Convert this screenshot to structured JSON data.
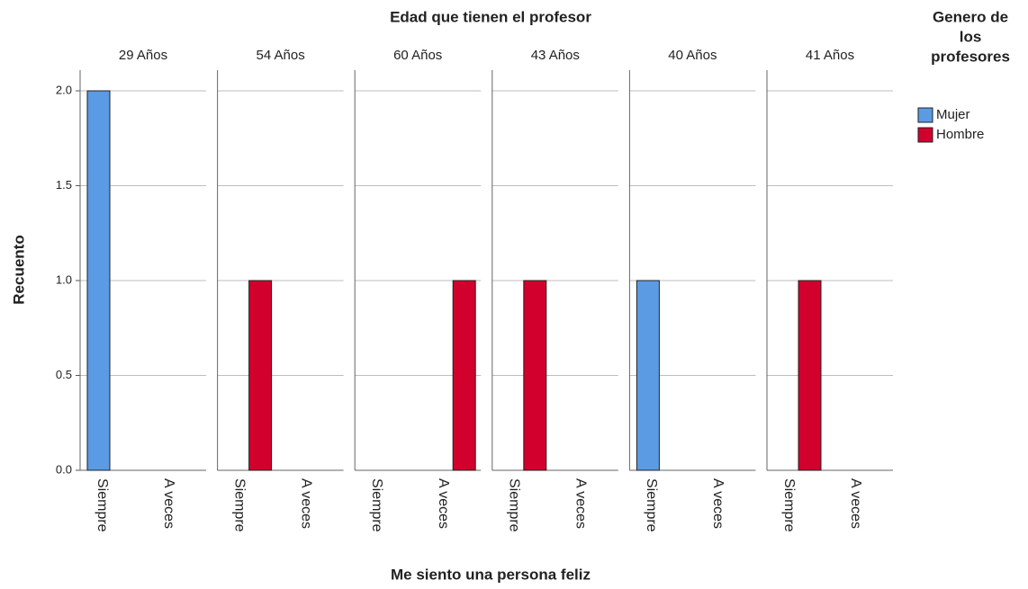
{
  "chart_data": {
    "type": "bar",
    "title": "Edad que tienen el profesor",
    "xlabel": "Me siento una persona feliz",
    "ylabel": "Recuento",
    "legend_title": [
      "Genero de",
      "los",
      "profesores"
    ],
    "legend": "right",
    "grid": true,
    "categories": [
      "Siempre",
      "A veces"
    ],
    "series": [
      {
        "name": "Mujer",
        "color": "#5a9be3"
      },
      {
        "name": "Hombre",
        "color": "#d2002c"
      }
    ],
    "panels": [
      {
        "label": "29 Años",
        "values": [
          [
            2,
            null
          ],
          [
            null,
            null
          ]
        ]
      },
      {
        "label": "54 Años",
        "values": [
          [
            null,
            null
          ],
          [
            1,
            null
          ]
        ]
      },
      {
        "label": "60 Años",
        "values": [
          [
            null,
            0
          ],
          [
            null,
            1
          ]
        ]
      },
      {
        "label": "43 Años",
        "values": [
          [
            null,
            null
          ],
          [
            1,
            null
          ]
        ]
      },
      {
        "label": "40 Años",
        "values": [
          [
            1,
            null
          ],
          [
            null,
            null
          ]
        ]
      },
      {
        "label": "41 Años",
        "values": [
          [
            null,
            null
          ],
          [
            1,
            null
          ]
        ]
      }
    ],
    "ylim": [
      0,
      2
    ],
    "yticks": [
      {
        "value": 0,
        "label": "0.0"
      },
      0.5,
      {
        "value": 1,
        "label": "1.0"
      },
      1.5,
      {
        "value": 2,
        "label": "2.0"
      }
    ]
  }
}
